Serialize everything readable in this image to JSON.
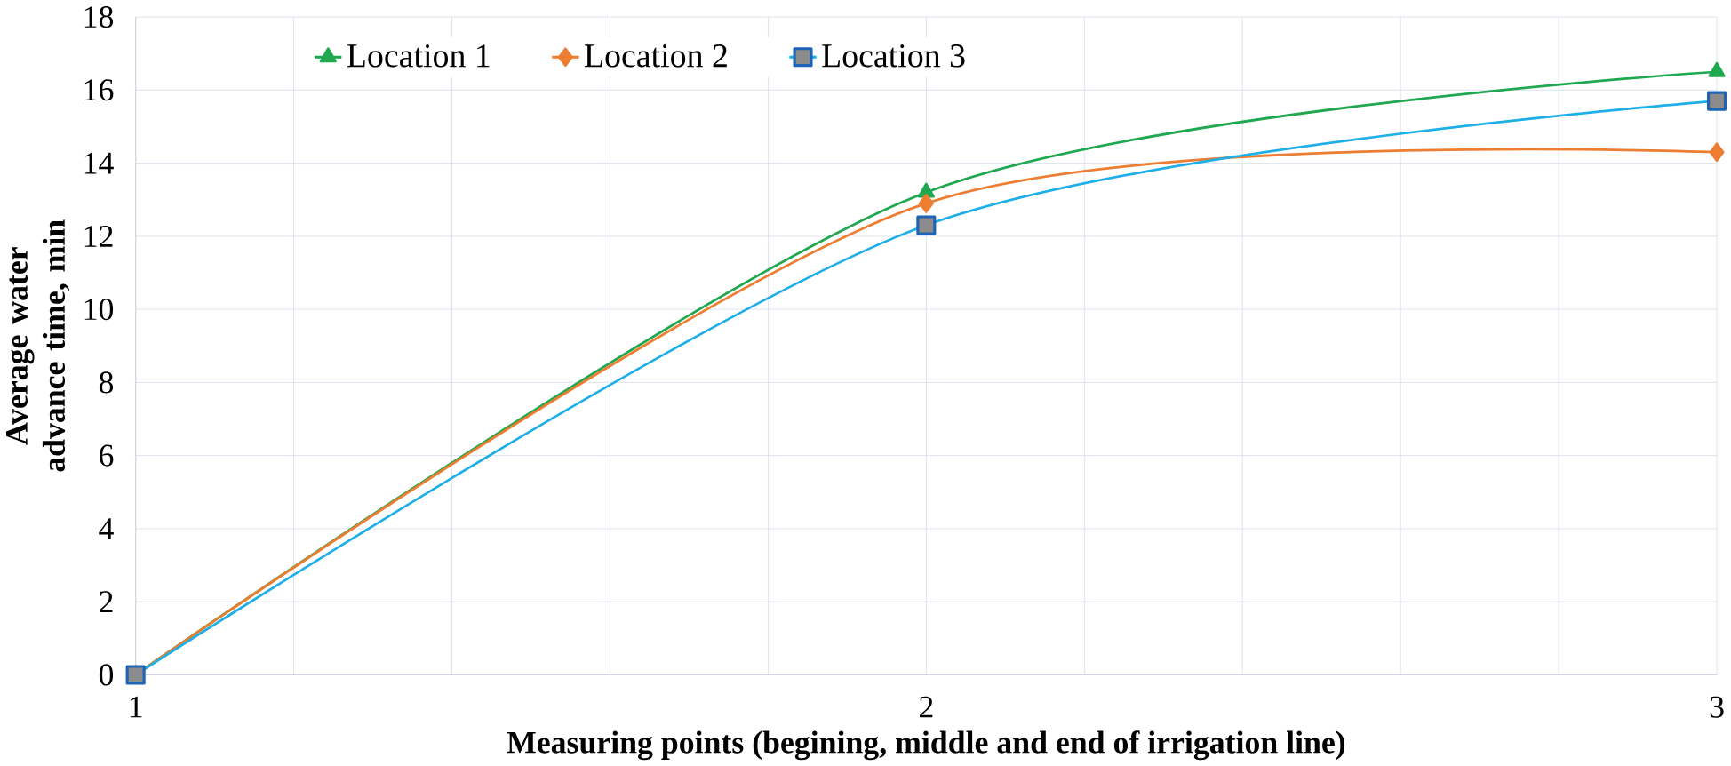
{
  "chart_data": {
    "type": "line",
    "xlabel": "Measuring points (begining, middle and end of irrigation line)",
    "ylabel": "Average water advance time, min",
    "x": [
      1,
      2,
      3
    ],
    "series": [
      {
        "name": "Location 1",
        "color": "#1fa84f",
        "marker": "triangle",
        "values": [
          0,
          13.2,
          16.5
        ]
      },
      {
        "name": "Location 2",
        "color": "#ed7d31",
        "marker": "diamond",
        "values": [
          0,
          12.9,
          14.3
        ]
      },
      {
        "name": "Location 3",
        "color": "#1eaee8",
        "marker": "square",
        "values": [
          0,
          12.3,
          15.7
        ]
      }
    ],
    "xlim": [
      1,
      3
    ],
    "ylim": [
      0,
      18
    ],
    "xticks": [
      1,
      {
        "value": 1.2,
        "label": null
      },
      {
        "value": 1.4,
        "label": null
      },
      {
        "value": 1.6,
        "label": null
      },
      {
        "value": 1.8,
        "label": null
      },
      2,
      {
        "value": 2.2,
        "label": null
      },
      {
        "value": 2.4,
        "label": null
      },
      {
        "value": 2.6,
        "label": null
      },
      {
        "value": 2.8,
        "label": null
      },
      3
    ],
    "yticks": [
      0,
      2,
      4,
      6,
      8,
      10,
      12,
      14,
      16,
      18
    ],
    "grid": true,
    "legend": "top",
    "line_style": "solid"
  }
}
